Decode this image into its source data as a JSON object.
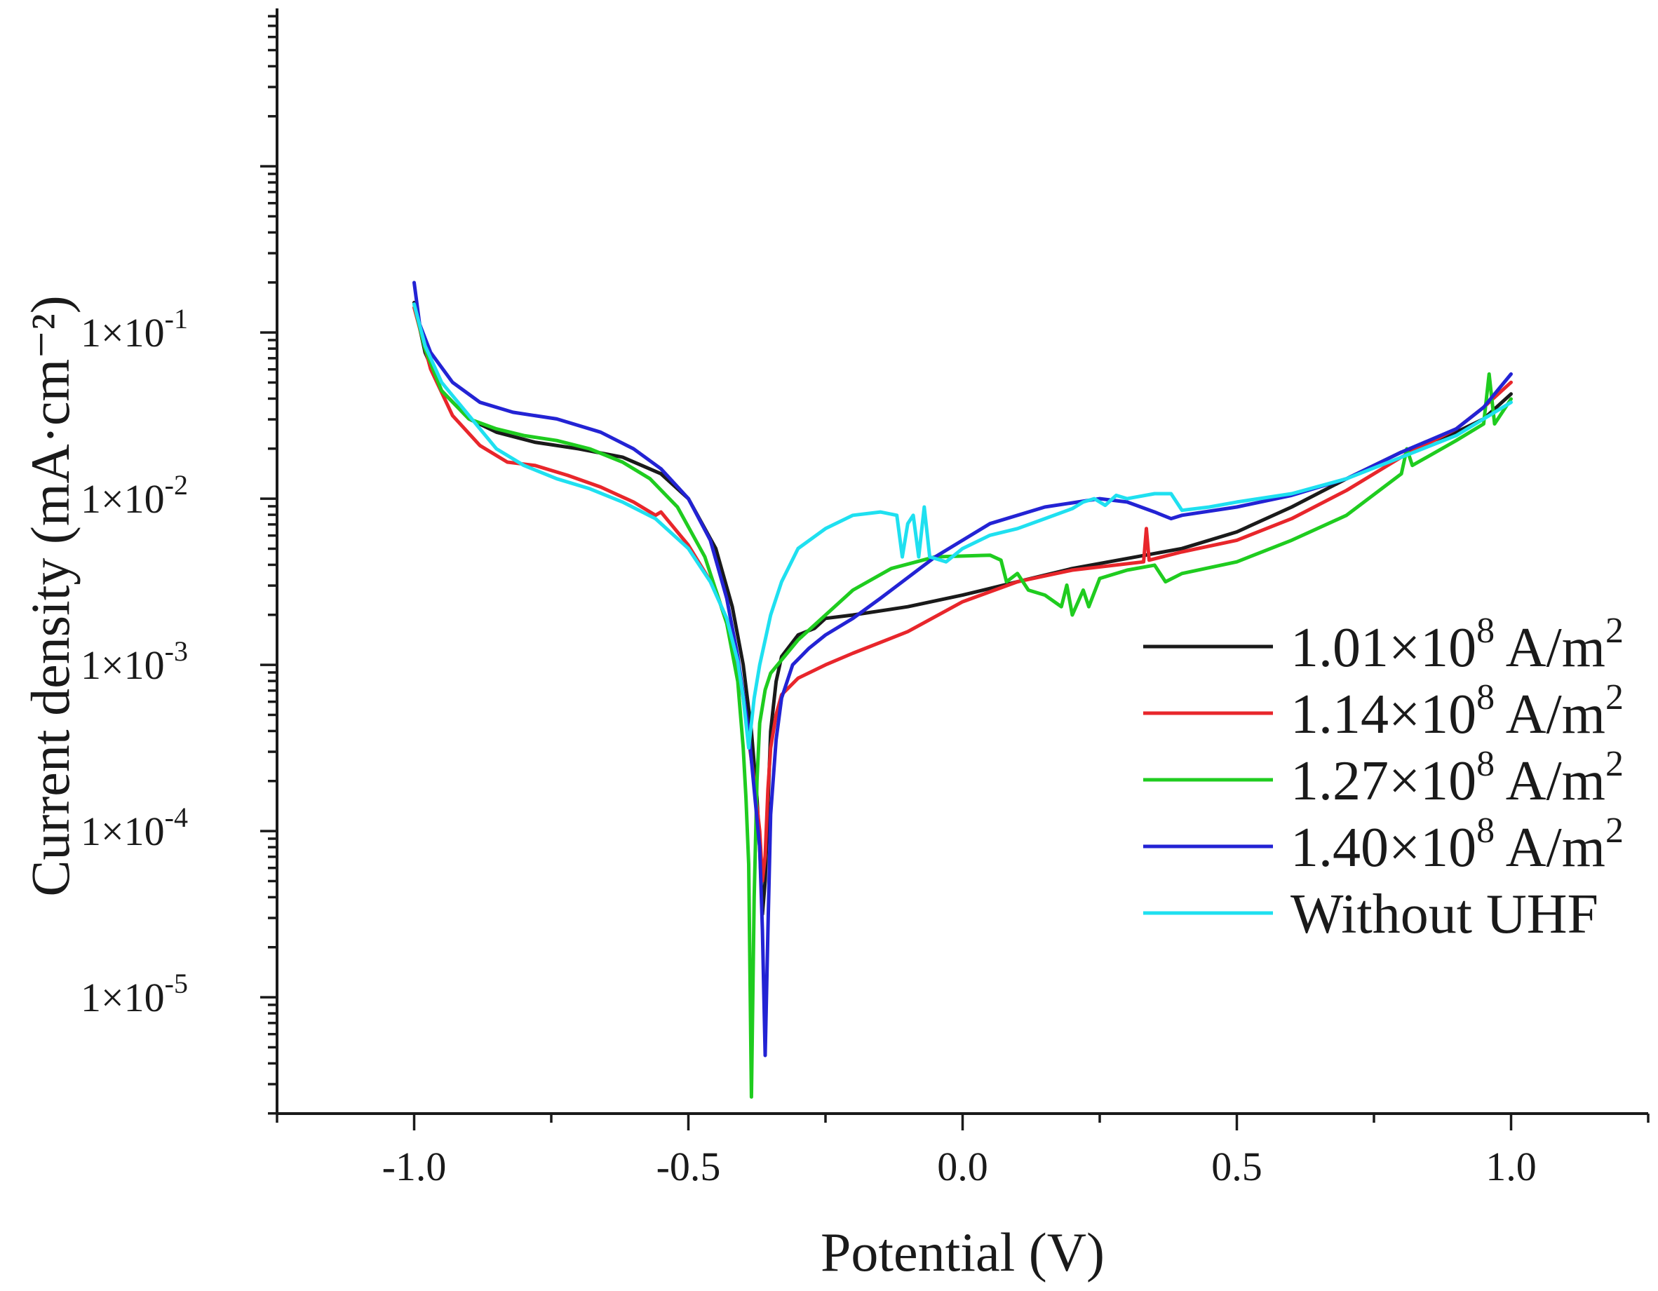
{
  "chart_data": {
    "type": "line",
    "title": "",
    "xlabel": "Potential (V)",
    "ylabel": "Current density (mA·cm⁻²)",
    "xlim": [
      -1.25,
      1.25
    ],
    "ylim_log10": [
      -5.7,
      0.95
    ],
    "yscale": "log",
    "grid": false,
    "legend_position": "right",
    "x_ticks": [
      {
        "value": -1.0,
        "label": "-1.0"
      },
      {
        "value": -0.5,
        "label": "-0.5"
      },
      {
        "value": 0.0,
        "label": "0.0"
      },
      {
        "value": 0.5,
        "label": "0.5"
      },
      {
        "value": 1.0,
        "label": "1.0"
      }
    ],
    "y_ticks": [
      {
        "exp": -1,
        "label_base": "1×10",
        "label_exp": "-1"
      },
      {
        "exp": -2,
        "label_base": "1×10",
        "label_exp": "-2"
      },
      {
        "exp": -3,
        "label_base": "1×10",
        "label_exp": "-3"
      },
      {
        "exp": -4,
        "label_base": "1×10",
        "label_exp": "-4"
      },
      {
        "exp": -5,
        "label_base": "1×10",
        "label_exp": "-5"
      }
    ],
    "series": [
      {
        "name": "1.01×10⁸ A/m²",
        "label_base": "1.01×10",
        "label_exp": "8",
        "label_unit": " A/m",
        "label_unit_exp": "2",
        "color": "#1a1a1a",
        "points": [
          [
            -1.0,
            -0.82
          ],
          [
            -0.98,
            -1.12
          ],
          [
            -0.95,
            -1.35
          ],
          [
            -0.9,
            -1.52
          ],
          [
            -0.85,
            -1.6
          ],
          [
            -0.78,
            -1.66
          ],
          [
            -0.7,
            -1.7
          ],
          [
            -0.62,
            -1.75
          ],
          [
            -0.55,
            -1.85
          ],
          [
            -0.5,
            -2.0
          ],
          [
            -0.45,
            -2.3
          ],
          [
            -0.42,
            -2.65
          ],
          [
            -0.4,
            -3.0
          ],
          [
            -0.385,
            -3.4
          ],
          [
            -0.375,
            -3.8
          ],
          [
            -0.37,
            -4.1
          ],
          [
            -0.365,
            -4.5
          ],
          [
            -0.36,
            -4.3
          ],
          [
            -0.355,
            -3.85
          ],
          [
            -0.35,
            -3.4
          ],
          [
            -0.34,
            -3.1
          ],
          [
            -0.33,
            -2.95
          ],
          [
            -0.3,
            -2.82
          ],
          [
            -0.27,
            -2.78
          ],
          [
            -0.25,
            -2.72
          ],
          [
            -0.2,
            -2.7
          ],
          [
            -0.1,
            -2.65
          ],
          [
            0.0,
            -2.58
          ],
          [
            0.1,
            -2.5
          ],
          [
            0.2,
            -2.42
          ],
          [
            0.3,
            -2.36
          ],
          [
            0.4,
            -2.3
          ],
          [
            0.5,
            -2.2
          ],
          [
            0.6,
            -2.05
          ],
          [
            0.7,
            -1.88
          ],
          [
            0.8,
            -1.72
          ],
          [
            0.9,
            -1.6
          ],
          [
            0.95,
            -1.52
          ],
          [
            1.0,
            -1.37
          ]
        ]
      },
      {
        "name": "1.14×10⁸ A/m²",
        "label_base": "1.14×10",
        "label_exp": "8",
        "label_unit": " A/m",
        "label_unit_exp": "2",
        "color": "#e8262b",
        "points": [
          [
            -1.0,
            -0.85
          ],
          [
            -0.97,
            -1.22
          ],
          [
            -0.93,
            -1.5
          ],
          [
            -0.88,
            -1.68
          ],
          [
            -0.83,
            -1.78
          ],
          [
            -0.78,
            -1.8
          ],
          [
            -0.72,
            -1.86
          ],
          [
            -0.66,
            -1.93
          ],
          [
            -0.6,
            -2.02
          ],
          [
            -0.56,
            -2.1
          ],
          [
            -0.55,
            -2.08
          ],
          [
            -0.54,
            -2.12
          ],
          [
            -0.5,
            -2.28
          ],
          [
            -0.45,
            -2.55
          ],
          [
            -0.42,
            -2.85
          ],
          [
            -0.4,
            -3.2
          ],
          [
            -0.39,
            -3.45
          ],
          [
            -0.38,
            -3.7
          ],
          [
            -0.37,
            -4.0
          ],
          [
            -0.365,
            -4.3
          ],
          [
            -0.36,
            -4.15
          ],
          [
            -0.355,
            -3.75
          ],
          [
            -0.35,
            -3.5
          ],
          [
            -0.34,
            -3.3
          ],
          [
            -0.33,
            -3.18
          ],
          [
            -0.3,
            -3.08
          ],
          [
            -0.25,
            -3.0
          ],
          [
            -0.2,
            -2.93
          ],
          [
            -0.1,
            -2.8
          ],
          [
            0.0,
            -2.62
          ],
          [
            0.1,
            -2.5
          ],
          [
            0.2,
            -2.43
          ],
          [
            0.33,
            -2.38
          ],
          [
            0.335,
            -2.18
          ],
          [
            0.34,
            -2.37
          ],
          [
            0.4,
            -2.32
          ],
          [
            0.5,
            -2.25
          ],
          [
            0.6,
            -2.12
          ],
          [
            0.7,
            -1.95
          ],
          [
            0.8,
            -1.75
          ],
          [
            0.9,
            -1.58
          ],
          [
            0.95,
            -1.45
          ],
          [
            1.0,
            -1.3
          ]
        ]
      },
      {
        "name": "1.27×10⁸ A/m²",
        "label_base": "1.27×10",
        "label_exp": "8",
        "label_unit": " A/m",
        "label_unit_exp": "2",
        "color": "#1fcc1f",
        "points": [
          [
            -1.0,
            -0.83
          ],
          [
            -0.98,
            -1.1
          ],
          [
            -0.95,
            -1.35
          ],
          [
            -0.9,
            -1.52
          ],
          [
            -0.85,
            -1.58
          ],
          [
            -0.8,
            -1.62
          ],
          [
            -0.74,
            -1.65
          ],
          [
            -0.68,
            -1.7
          ],
          [
            -0.62,
            -1.78
          ],
          [
            -0.57,
            -1.88
          ],
          [
            -0.52,
            -2.05
          ],
          [
            -0.47,
            -2.35
          ],
          [
            -0.43,
            -2.75
          ],
          [
            -0.41,
            -3.1
          ],
          [
            -0.4,
            -3.5
          ],
          [
            -0.395,
            -3.8
          ],
          [
            -0.39,
            -4.2
          ],
          [
            -0.385,
            -5.6
          ],
          [
            -0.38,
            -4.4
          ],
          [
            -0.375,
            -3.7
          ],
          [
            -0.37,
            -3.35
          ],
          [
            -0.36,
            -3.15
          ],
          [
            -0.35,
            -3.05
          ],
          [
            -0.3,
            -2.85
          ],
          [
            -0.2,
            -2.55
          ],
          [
            -0.13,
            -2.42
          ],
          [
            -0.05,
            -2.35
          ],
          [
            0.05,
            -2.34
          ],
          [
            0.07,
            -2.37
          ],
          [
            0.08,
            -2.5
          ],
          [
            0.1,
            -2.45
          ],
          [
            0.12,
            -2.55
          ],
          [
            0.15,
            -2.58
          ],
          [
            0.18,
            -2.65
          ],
          [
            0.19,
            -2.52
          ],
          [
            0.2,
            -2.7
          ],
          [
            0.22,
            -2.55
          ],
          [
            0.23,
            -2.65
          ],
          [
            0.25,
            -2.48
          ],
          [
            0.3,
            -2.43
          ],
          [
            0.35,
            -2.4
          ],
          [
            0.37,
            -2.5
          ],
          [
            0.4,
            -2.45
          ],
          [
            0.5,
            -2.38
          ],
          [
            0.6,
            -2.25
          ],
          [
            0.7,
            -2.1
          ],
          [
            0.8,
            -1.85
          ],
          [
            0.81,
            -1.7
          ],
          [
            0.82,
            -1.8
          ],
          [
            0.9,
            -1.65
          ],
          [
            0.95,
            -1.55
          ],
          [
            0.96,
            -1.25
          ],
          [
            0.97,
            -1.55
          ],
          [
            1.0,
            -1.4
          ]
        ]
      },
      {
        "name": "1.40×10⁸ A/m²",
        "label_base": "1.40×10",
        "label_exp": "8",
        "label_unit": " A/m",
        "label_unit_exp": "2",
        "color": "#2323d4",
        "points": [
          [
            -1.0,
            -0.7
          ],
          [
            -0.99,
            -0.95
          ],
          [
            -0.97,
            -1.12
          ],
          [
            -0.93,
            -1.3
          ],
          [
            -0.88,
            -1.42
          ],
          [
            -0.82,
            -1.48
          ],
          [
            -0.74,
            -1.52
          ],
          [
            -0.66,
            -1.6
          ],
          [
            -0.6,
            -1.7
          ],
          [
            -0.55,
            -1.82
          ],
          [
            -0.5,
            -2.0
          ],
          [
            -0.46,
            -2.25
          ],
          [
            -0.43,
            -2.6
          ],
          [
            -0.41,
            -2.95
          ],
          [
            -0.39,
            -3.4
          ],
          [
            -0.38,
            -3.75
          ],
          [
            -0.37,
            -4.1
          ],
          [
            -0.365,
            -4.6
          ],
          [
            -0.36,
            -5.35
          ],
          [
            -0.355,
            -4.6
          ],
          [
            -0.35,
            -3.9
          ],
          [
            -0.34,
            -3.45
          ],
          [
            -0.33,
            -3.2
          ],
          [
            -0.31,
            -3.0
          ],
          [
            -0.28,
            -2.9
          ],
          [
            -0.25,
            -2.82
          ],
          [
            -0.2,
            -2.72
          ],
          [
            -0.15,
            -2.6
          ],
          [
            -0.05,
            -2.35
          ],
          [
            0.05,
            -2.15
          ],
          [
            0.15,
            -2.05
          ],
          [
            0.25,
            -2.0
          ],
          [
            0.3,
            -2.02
          ],
          [
            0.35,
            -2.08
          ],
          [
            0.38,
            -2.12
          ],
          [
            0.4,
            -2.1
          ],
          [
            0.5,
            -2.05
          ],
          [
            0.6,
            -1.98
          ],
          [
            0.7,
            -1.88
          ],
          [
            0.8,
            -1.72
          ],
          [
            0.9,
            -1.58
          ],
          [
            0.95,
            -1.45
          ],
          [
            1.0,
            -1.25
          ]
        ]
      },
      {
        "name": "Without UHF",
        "label_base": "Without UHF",
        "label_exp": "",
        "label_unit": "",
        "label_unit_exp": "",
        "color": "#1fe0f0",
        "points": [
          [
            -1.0,
            -0.83
          ],
          [
            -0.98,
            -1.08
          ],
          [
            -0.95,
            -1.3
          ],
          [
            -0.9,
            -1.5
          ],
          [
            -0.85,
            -1.7
          ],
          [
            -0.8,
            -1.8
          ],
          [
            -0.74,
            -1.88
          ],
          [
            -0.68,
            -1.94
          ],
          [
            -0.62,
            -2.02
          ],
          [
            -0.56,
            -2.12
          ],
          [
            -0.5,
            -2.3
          ],
          [
            -0.46,
            -2.5
          ],
          [
            -0.43,
            -2.72
          ],
          [
            -0.41,
            -2.98
          ],
          [
            -0.4,
            -3.2
          ],
          [
            -0.39,
            -3.5
          ],
          [
            -0.38,
            -3.2
          ],
          [
            -0.37,
            -3.0
          ],
          [
            -0.36,
            -2.85
          ],
          [
            -0.35,
            -2.7
          ],
          [
            -0.33,
            -2.5
          ],
          [
            -0.3,
            -2.3
          ],
          [
            -0.25,
            -2.18
          ],
          [
            -0.2,
            -2.1
          ],
          [
            -0.15,
            -2.08
          ],
          [
            -0.12,
            -2.1
          ],
          [
            -0.11,
            -2.35
          ],
          [
            -0.1,
            -2.15
          ],
          [
            -0.09,
            -2.1
          ],
          [
            -0.08,
            -2.35
          ],
          [
            -0.07,
            -2.05
          ],
          [
            -0.06,
            -2.35
          ],
          [
            -0.03,
            -2.38
          ],
          [
            0.0,
            -2.3
          ],
          [
            0.05,
            -2.22
          ],
          [
            0.1,
            -2.18
          ],
          [
            0.15,
            -2.12
          ],
          [
            0.2,
            -2.06
          ],
          [
            0.22,
            -2.02
          ],
          [
            0.24,
            -2.0
          ],
          [
            0.26,
            -2.04
          ],
          [
            0.28,
            -1.98
          ],
          [
            0.3,
            -2.0
          ],
          [
            0.35,
            -1.97
          ],
          [
            0.38,
            -1.97
          ],
          [
            0.4,
            -2.07
          ],
          [
            0.45,
            -2.05
          ],
          [
            0.5,
            -2.02
          ],
          [
            0.6,
            -1.97
          ],
          [
            0.7,
            -1.88
          ],
          [
            0.8,
            -1.75
          ],
          [
            0.9,
            -1.62
          ],
          [
            1.0,
            -1.42
          ]
        ]
      }
    ]
  }
}
